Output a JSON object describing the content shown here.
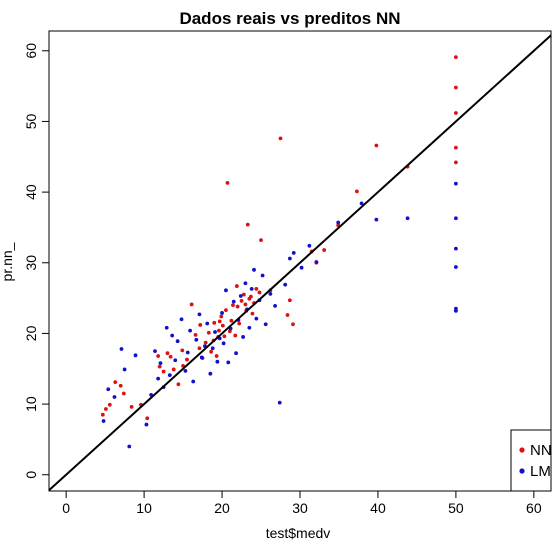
{
  "chart_data": {
    "type": "scatter",
    "title": "Dados reais vs preditos NN",
    "xlabel": "test$medv",
    "ylabel": "pr.nn_",
    "xlim": [
      -2.2,
      62.2
    ],
    "ylim": [
      -2.3,
      62.8
    ],
    "xticks": [
      0,
      10,
      20,
      30,
      40,
      50,
      60
    ],
    "yticks": [
      0,
      10,
      20,
      30,
      40,
      50,
      60
    ],
    "grid": false,
    "legend": "bottom-right",
    "reference_line": {
      "x": [
        -2.2,
        62.2
      ],
      "y": [
        -2.2,
        62.2
      ],
      "color": "#000000"
    },
    "series": [
      {
        "name": "NN",
        "color": "#dd1111",
        "x": [
          4.7,
          5.1,
          5.6,
          6.3,
          7.0,
          7.4,
          8.4,
          9.6,
          10.4,
          11.8,
          12.0,
          12.5,
          13.0,
          13.4,
          13.8,
          14.4,
          14.9,
          15.0,
          15.5,
          16.1,
          16.6,
          17.1,
          17.2,
          17.5,
          17.9,
          18.3,
          18.6,
          18.9,
          19.0,
          19.3,
          19.5,
          19.6,
          19.7,
          19.9,
          20.1,
          20.3,
          20.5,
          20.7,
          21.0,
          21.2,
          21.4,
          21.7,
          21.9,
          22.0,
          22.2,
          22.5,
          22.8,
          23.0,
          23.1,
          23.3,
          23.5,
          23.7,
          23.9,
          24.1,
          24.4,
          24.8,
          25.0,
          26.2,
          27.5,
          28.4,
          28.7,
          29.1,
          31.5,
          32.1,
          33.1,
          34.9,
          37.3,
          39.8,
          43.8,
          50.0,
          50.0,
          50.0,
          50.0,
          50.0
        ],
        "y": [
          8.5,
          9.3,
          9.9,
          13.1,
          12.6,
          11.5,
          9.6,
          9.9,
          8.0,
          16.8,
          15.3,
          14.6,
          17.2,
          16.7,
          14.9,
          12.8,
          17.6,
          15.4,
          16.3,
          24.1,
          19.8,
          17.9,
          21.2,
          16.5,
          18.7,
          20.1,
          17.4,
          19.0,
          21.5,
          16.8,
          19.5,
          20.4,
          21.7,
          22.4,
          21.1,
          19.6,
          23.3,
          41.3,
          20.3,
          21.8,
          24.0,
          19.7,
          26.7,
          23.8,
          21.4,
          24.6,
          25.5,
          24.1,
          23.2,
          35.4,
          24.9,
          25.2,
          22.8,
          24.3,
          26.3,
          25.8,
          33.2,
          26.1,
          47.6,
          22.6,
          24.7,
          21.3,
          31.6,
          30.0,
          31.8,
          35.3,
          40.1,
          46.6,
          43.6,
          59.1,
          54.8,
          51.2,
          46.3,
          44.2
        ]
      },
      {
        "name": "LM",
        "color": "#1111cc",
        "x": [
          4.8,
          5.4,
          6.2,
          7.1,
          7.5,
          8.1,
          8.9,
          10.3,
          10.9,
          11.4,
          11.8,
          12.1,
          12.5,
          12.9,
          13.3,
          13.6,
          14.0,
          14.3,
          14.8,
          15.3,
          15.6,
          15.9,
          16.3,
          16.7,
          17.1,
          17.4,
          17.8,
          18.1,
          18.5,
          18.8,
          19.1,
          19.4,
          19.7,
          20.0,
          20.2,
          20.5,
          20.8,
          21.1,
          21.5,
          21.8,
          22.1,
          22.4,
          22.7,
          23.0,
          23.2,
          23.5,
          23.8,
          24.1,
          24.4,
          24.8,
          25.2,
          25.6,
          26.2,
          26.8,
          27.4,
          28.1,
          28.7,
          29.2,
          30.2,
          31.2,
          32.1,
          34.9,
          37.9,
          39.8,
          43.8,
          50.0,
          50.0,
          50.0,
          50.0,
          50.0,
          50.0
        ],
        "y": [
          7.6,
          12.1,
          11.0,
          17.8,
          14.9,
          4.0,
          16.9,
          7.1,
          11.3,
          17.5,
          13.6,
          15.8,
          12.4,
          20.8,
          14.1,
          19.7,
          16.2,
          18.9,
          22.0,
          14.7,
          17.3,
          20.4,
          13.2,
          19.1,
          22.7,
          16.6,
          18.2,
          21.4,
          14.3,
          17.9,
          20.2,
          16.0,
          19.3,
          22.9,
          18.6,
          26.1,
          15.9,
          20.7,
          24.5,
          17.2,
          21.9,
          25.3,
          19.5,
          27.1,
          23.4,
          20.8,
          26.3,
          29.0,
          22.1,
          24.7,
          28.2,
          21.3,
          25.6,
          23.9,
          10.2,
          26.9,
          30.6,
          31.4,
          29.3,
          32.4,
          30.1,
          35.7,
          38.4,
          36.1,
          36.3,
          41.2,
          36.3,
          32.0,
          23.5,
          23.2,
          29.4
        ]
      }
    ]
  }
}
